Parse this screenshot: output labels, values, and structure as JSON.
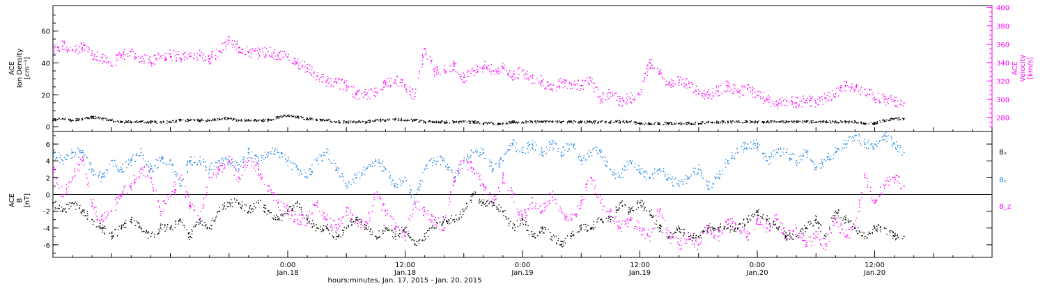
{
  "chart_data": [
    {
      "type": "scatter",
      "panel": "density-velocity",
      "ylabel_left": [
        "ACE",
        "Ion Density",
        "[cm⁻³]"
      ],
      "ylabel_right": [
        "ACE",
        "Velocity",
        "[km/s]"
      ],
      "ylim_left": [
        -3,
        76
      ],
      "yticks_left": [
        0,
        20,
        40,
        60
      ],
      "ylim_right": [
        265,
        402
      ],
      "yticks_right": [
        280,
        300,
        320,
        340,
        360,
        380,
        400
      ],
      "series": [
        {
          "axis": "left",
          "color": "#000000",
          "x": [
            0,
            1,
            2,
            3,
            4,
            5,
            6,
            7,
            8,
            9,
            10,
            11,
            12,
            13,
            14,
            15,
            16,
            17,
            18,
            19,
            20,
            21,
            22,
            23,
            24,
            25,
            26,
            27,
            28,
            29,
            30,
            31,
            32,
            33,
            34,
            35,
            36,
            37,
            38,
            39,
            40,
            41,
            42,
            43,
            44,
            45,
            46,
            47,
            48,
            49,
            50,
            51,
            52,
            53,
            54,
            55,
            56,
            57,
            58,
            59,
            60,
            61,
            62,
            63,
            64,
            65,
            66,
            67,
            68,
            69,
            70,
            71,
            72,
            73,
            74,
            75,
            76,
            77,
            78,
            79,
            80,
            81,
            82,
            83,
            84,
            85,
            86,
            87
          ],
          "y": [
            4,
            5,
            4,
            5,
            6,
            5,
            4,
            3,
            3,
            3,
            3,
            3,
            3,
            4,
            4,
            4,
            4,
            5,
            5,
            4,
            4,
            4,
            4,
            6,
            7,
            6,
            5,
            4,
            4,
            3,
            3,
            3,
            3,
            4,
            4,
            5,
            4,
            4,
            3,
            3,
            3,
            3,
            3,
            3,
            2,
            2,
            2,
            3,
            3,
            3,
            3,
            3,
            3,
            3,
            3,
            3,
            3,
            3,
            3,
            3,
            2,
            2,
            2,
            2,
            2,
            2,
            2,
            3,
            3,
            3,
            3,
            3,
            3,
            3,
            3,
            3,
            3,
            3,
            3,
            3,
            3,
            3,
            3,
            2,
            2,
            4,
            5,
            5
          ]
        },
        {
          "axis": "right",
          "color": "#ff00ff",
          "x": [
            0,
            1,
            2,
            3,
            4,
            5,
            6,
            7,
            8,
            9,
            10,
            11,
            12,
            13,
            14,
            15,
            16,
            17,
            18,
            19,
            20,
            21,
            22,
            23,
            24,
            25,
            26,
            27,
            28,
            29,
            30,
            31,
            32,
            33,
            34,
            35,
            36,
            37,
            38,
            39,
            40,
            41,
            42,
            43,
            44,
            45,
            46,
            47,
            48,
            49,
            50,
            51,
            52,
            53,
            54,
            55,
            56,
            57,
            58,
            59,
            60,
            61,
            62,
            63,
            64,
            65,
            66,
            67,
            68,
            69,
            70,
            71,
            72,
            73,
            74,
            75,
            76,
            77,
            78,
            79,
            80,
            81,
            82,
            83,
            84,
            85,
            86,
            87
          ],
          "y": [
            355,
            358,
            354,
            356,
            350,
            345,
            337,
            348,
            352,
            345,
            340,
            347,
            349,
            345,
            347,
            348,
            344,
            352,
            364,
            356,
            351,
            350,
            352,
            348,
            346,
            340,
            334,
            325,
            320,
            318,
            315,
            306,
            305,
            308,
            318,
            321,
            316,
            303,
            355,
            330,
            332,
            336,
            324,
            331,
            336,
            331,
            334,
            325,
            331,
            323,
            320,
            311,
            318,
            317,
            315,
            320,
            300,
            307,
            298,
            301,
            305,
            340,
            328,
            318,
            321,
            317,
            306,
            305,
            309,
            315,
            308,
            311,
            304,
            300,
            294,
            298,
            296,
            299,
            296,
            301,
            306,
            315,
            310,
            311,
            302,
            300,
            298,
            296
          ]
        }
      ]
    },
    {
      "type": "scatter",
      "panel": "magnetic-field",
      "ylabel": [
        "ACE",
        "B",
        "[nT]"
      ],
      "ylim": [
        -7.5,
        7.5
      ],
      "yticks": [
        -6,
        -4,
        -2,
        0,
        2,
        4,
        6
      ],
      "legend": [
        {
          "label": "Bₓ",
          "color": "#000000"
        },
        {
          "label": "Bᵧ",
          "color": "#1e82e6"
        },
        {
          "label": "B_z",
          "color": "#ff00ff"
        }
      ],
      "legend_placement": "right",
      "series": [
        {
          "name": "Bₓ",
          "color": "#000000",
          "x": [
            0,
            1,
            2,
            3,
            4,
            5,
            6,
            7,
            8,
            9,
            10,
            11,
            12,
            13,
            14,
            15,
            16,
            17,
            18,
            19,
            20,
            21,
            22,
            23,
            24,
            25,
            26,
            27,
            28,
            29,
            30,
            31,
            32,
            33,
            34,
            35,
            36,
            37,
            38,
            39,
            40,
            41,
            42,
            43,
            44,
            45,
            46,
            47,
            48,
            49,
            50,
            51,
            52,
            53,
            54,
            55,
            56,
            57,
            58,
            59,
            60,
            61,
            62,
            63,
            64,
            65,
            66,
            67,
            68,
            69,
            70,
            71,
            72,
            73,
            74,
            75,
            76,
            77,
            78,
            79,
            80,
            81,
            82,
            83,
            84,
            85,
            86,
            87
          ],
          "y": [
            -1,
            -2,
            -1,
            -2,
            -3,
            -4,
            -5,
            -4,
            -3,
            -4,
            -5,
            -4,
            -4,
            -3,
            -5,
            -3,
            -4,
            -2,
            -1,
            -1,
            -2,
            -1,
            -2,
            -3,
            -2,
            -1,
            -3,
            -4,
            -4,
            -5,
            -4,
            -3,
            -4,
            -5,
            -4,
            -5,
            -4,
            -6,
            -5,
            -4,
            -3,
            -3,
            -2,
            0,
            -1,
            -1,
            -2,
            -4,
            -3,
            -5,
            -4,
            -5,
            -6,
            -5,
            -4,
            -4,
            -3,
            -3,
            -1,
            -2,
            -1,
            -2,
            -4,
            -5,
            -4,
            -5,
            -5,
            -4,
            -4,
            -4,
            -4,
            -3,
            -2,
            -3,
            -4,
            -5,
            -5,
            -4,
            -3,
            -5,
            -2,
            -3,
            -4,
            -5,
            -4,
            -4,
            -5,
            -5
          ]
        },
        {
          "name": "Bᵧ",
          "color": "#1e82e6",
          "x": [
            0,
            1,
            2,
            3,
            4,
            5,
            6,
            7,
            8,
            9,
            10,
            11,
            12,
            13,
            14,
            15,
            16,
            17,
            18,
            19,
            20,
            21,
            22,
            23,
            24,
            25,
            26,
            27,
            28,
            29,
            30,
            31,
            32,
            33,
            34,
            35,
            36,
            37,
            38,
            39,
            40,
            41,
            42,
            43,
            44,
            45,
            46,
            47,
            48,
            49,
            50,
            51,
            52,
            53,
            54,
            55,
            56,
            57,
            58,
            59,
            60,
            61,
            62,
            63,
            64,
            65,
            66,
            67,
            68,
            69,
            70,
            71,
            72,
            73,
            74,
            75,
            76,
            77,
            78,
            79,
            80,
            81,
            82,
            83,
            84,
            85,
            86,
            87
          ],
          "y": [
            5,
            4,
            5,
            5,
            3,
            2,
            4,
            3,
            4,
            5,
            3,
            4,
            4,
            1,
            4,
            4,
            3,
            4,
            4,
            3,
            5,
            4,
            5,
            5,
            4,
            3,
            2,
            4,
            5,
            3,
            1,
            2,
            3,
            4,
            3,
            1,
            2,
            -1,
            3,
            4,
            4,
            2,
            4,
            5,
            5,
            3,
            4,
            6,
            5,
            6,
            5,
            6,
            5,
            6,
            4,
            5,
            5,
            3,
            2,
            4,
            3,
            2,
            3,
            2,
            1,
            2,
            3,
            1,
            2,
            4,
            5,
            6,
            6,
            4,
            5,
            5,
            4,
            5,
            3,
            4,
            5,
            6,
            7,
            6,
            6,
            7,
            6,
            5
          ]
        },
        {
          "name": "B_z",
          "color": "#ff00ff",
          "x": [
            0,
            1,
            2,
            3,
            4,
            5,
            6,
            7,
            8,
            9,
            10,
            11,
            12,
            13,
            14,
            15,
            16,
            17,
            18,
            19,
            20,
            21,
            22,
            23,
            24,
            25,
            26,
            27,
            28,
            29,
            30,
            31,
            32,
            33,
            34,
            35,
            36,
            37,
            38,
            39,
            40,
            41,
            42,
            43,
            44,
            45,
            46,
            47,
            48,
            49,
            50,
            51,
            52,
            53,
            54,
            55,
            56,
            57,
            58,
            59,
            60,
            61,
            62,
            63,
            64,
            65,
            66,
            67,
            68,
            69,
            70,
            71,
            72,
            73,
            74,
            75,
            76,
            77,
            78,
            79,
            80,
            81,
            82,
            83,
            84,
            85,
            86,
            87
          ],
          "y": [
            3,
            0,
            2,
            4,
            -1,
            -3,
            -2,
            0,
            1,
            3,
            2,
            -2,
            0,
            2,
            -1,
            -3,
            2,
            3,
            4,
            2,
            4,
            3,
            1,
            -1,
            -2,
            -3,
            -3,
            -1,
            -3,
            -4,
            -2,
            -3,
            -4,
            0,
            -2,
            -4,
            -5,
            -1,
            -2,
            -3,
            -4,
            2,
            4,
            3,
            1,
            -1,
            2,
            0,
            -3,
            -1,
            -2,
            0,
            -2,
            -3,
            -1,
            2,
            -1,
            -2,
            -4,
            -3,
            -4,
            -5,
            -2,
            -5,
            -6,
            -5,
            -6,
            -4,
            -5,
            -3,
            -4,
            -5,
            -3,
            -4,
            -3,
            -5,
            -4,
            -6,
            -5,
            -6,
            -3,
            -5,
            -4,
            2,
            -1,
            1,
            2,
            1
          ]
        }
      ]
    }
  ],
  "x_axis": {
    "ticks": [
      {
        "x": 24,
        "time": "0:00",
        "date": "Jan.18"
      },
      {
        "x": 36,
        "time": "12:00",
        "date": "Jan.18"
      },
      {
        "x": 48,
        "time": "0:00",
        "date": "Jan.19"
      },
      {
        "x": 60,
        "time": "12:00",
        "date": "Jan.19"
      },
      {
        "x": 72,
        "time": "0:00",
        "date": "Jan.20"
      },
      {
        "x": 84,
        "time": "12:00",
        "date": "Jan.20"
      }
    ],
    "label": "hours:minutes, Jan. 17, 2015 - Jan. 20, 2015"
  }
}
